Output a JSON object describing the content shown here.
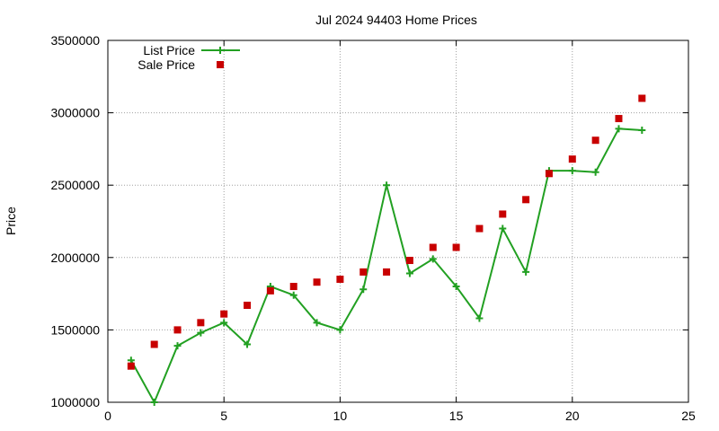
{
  "chart_data": {
    "type": "line",
    "title": "Jul 2024 94403 Home Prices",
    "xlabel": "",
    "ylabel": "Price",
    "xlim": [
      0,
      25
    ],
    "ylim": [
      1000000,
      3500000
    ],
    "x_ticks": [
      "0",
      "5",
      "10",
      "15",
      "20",
      "25"
    ],
    "y_ticks": [
      "1000000",
      "1500000",
      "2000000",
      "2500000",
      "3000000",
      "3500000"
    ],
    "grid": true,
    "legend_position": "top-left",
    "series": [
      {
        "name": "List Price",
        "style": "line-with-plus-markers",
        "color": "#22a022",
        "x": [
          1,
          2,
          3,
          4,
          5,
          6,
          7,
          8,
          9,
          10,
          11,
          12,
          13,
          14,
          15,
          16,
          17,
          18,
          19,
          20,
          21,
          22,
          23
        ],
        "values": [
          1290000,
          1000000,
          1390000,
          1480000,
          1550000,
          1400000,
          1800000,
          1740000,
          1550000,
          1500000,
          1780000,
          2500000,
          1890000,
          1990000,
          1800000,
          1580000,
          2200000,
          1900000,
          2600000,
          2600000,
          2590000,
          2890000,
          2880000
        ]
      },
      {
        "name": "Sale Price",
        "style": "square-markers",
        "color": "#c80000",
        "x": [
          1,
          2,
          3,
          4,
          5,
          6,
          7,
          8,
          9,
          10,
          11,
          12,
          13,
          14,
          15,
          16,
          17,
          18,
          19,
          20,
          21,
          22,
          23
        ],
        "values": [
          1250000,
          1400000,
          1500000,
          1550000,
          1610000,
          1670000,
          1770000,
          1800000,
          1830000,
          1850000,
          1900000,
          1900000,
          1980000,
          2070000,
          2070000,
          2200000,
          2300000,
          2400000,
          2580000,
          2680000,
          2810000,
          2960000,
          3100000
        ]
      }
    ]
  }
}
